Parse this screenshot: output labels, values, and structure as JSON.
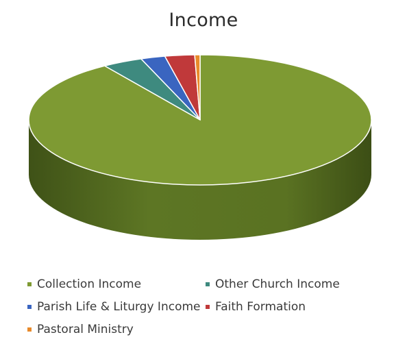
{
  "chart_data": {
    "type": "pie",
    "title": "Income",
    "categories": [
      "Collection Income",
      "Other Church Income",
      "Parish Life & Liturgy Income",
      "Faith Formation",
      "Pastoral Ministry"
    ],
    "values": [
      90.6,
      3.8,
      2.3,
      2.8,
      0.5
    ],
    "colors": [
      "#7e9a33",
      "#3e8a7f",
      "#3a65c0",
      "#c0393a",
      "#e88a2a"
    ],
    "legend_position": "bottom",
    "style": "3d"
  }
}
